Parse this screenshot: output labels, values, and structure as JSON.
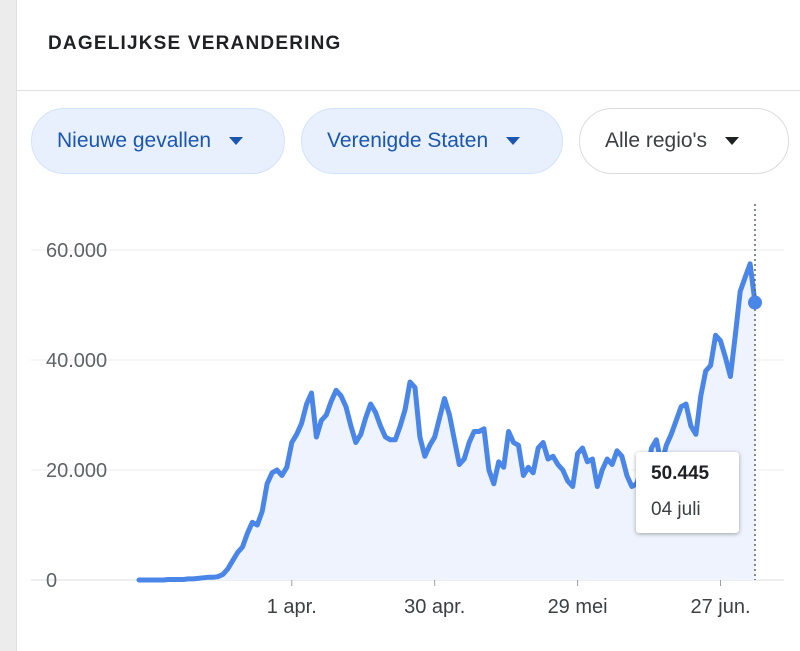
{
  "card": {
    "title": "DAGELIJKSE VERANDERING"
  },
  "filters": {
    "metric": "Nieuwe gevallen",
    "country": "Verenigde Staten",
    "region": "Alle regio's"
  },
  "tooltip": {
    "value": "50.445",
    "date": "04 juli"
  },
  "colors": {
    "line": "#4a86e8",
    "area": "#eef3fd",
    "chip_selected_bg": "#e8f0fe",
    "chip_selected_text": "#1a56b0"
  },
  "chart_data": {
    "type": "area",
    "xlabel": "",
    "ylabel": "",
    "ylim": [
      0,
      67000
    ],
    "y_ticks": [
      0,
      20000,
      40000,
      60000
    ],
    "y_tick_labels": [
      "0",
      "20.000",
      "40.000",
      "60.000"
    ],
    "x_ticks": [
      {
        "date": "2020-04-01",
        "label": "1 apr."
      },
      {
        "date": "2020-04-30",
        "label": "30 apr."
      },
      {
        "date": "2020-05-29",
        "label": "29 mei"
      },
      {
        "date": "2020-06-27",
        "label": "27 jun."
      }
    ],
    "grid": true,
    "highlighted": {
      "date": "2020-07-04",
      "value": 50445
    },
    "series": [
      {
        "dates": [
          "2020-03-01",
          "2020-03-02",
          "2020-03-03",
          "2020-03-04",
          "2020-03-05",
          "2020-03-06",
          "2020-03-07",
          "2020-03-08",
          "2020-03-09",
          "2020-03-10",
          "2020-03-11",
          "2020-03-12",
          "2020-03-13",
          "2020-03-14",
          "2020-03-15",
          "2020-03-16",
          "2020-03-17",
          "2020-03-18",
          "2020-03-19",
          "2020-03-20",
          "2020-03-21",
          "2020-03-22",
          "2020-03-23",
          "2020-03-24",
          "2020-03-25",
          "2020-03-26",
          "2020-03-27",
          "2020-03-28",
          "2020-03-29",
          "2020-03-30",
          "2020-03-31",
          "2020-04-01",
          "2020-04-02",
          "2020-04-03",
          "2020-04-04",
          "2020-04-05",
          "2020-04-06",
          "2020-04-07",
          "2020-04-08",
          "2020-04-09",
          "2020-04-10",
          "2020-04-11",
          "2020-04-12",
          "2020-04-13",
          "2020-04-14",
          "2020-04-15",
          "2020-04-16",
          "2020-04-17",
          "2020-04-18",
          "2020-04-19",
          "2020-04-20",
          "2020-04-21",
          "2020-04-22",
          "2020-04-23",
          "2020-04-24",
          "2020-04-25",
          "2020-04-26",
          "2020-04-27",
          "2020-04-28",
          "2020-04-29",
          "2020-04-30",
          "2020-05-01",
          "2020-05-02",
          "2020-05-03",
          "2020-05-04",
          "2020-05-05",
          "2020-05-06",
          "2020-05-07",
          "2020-05-08",
          "2020-05-09",
          "2020-05-10",
          "2020-05-11",
          "2020-05-12",
          "2020-05-13",
          "2020-05-14",
          "2020-05-15",
          "2020-05-16",
          "2020-05-17",
          "2020-05-18",
          "2020-05-19",
          "2020-05-20",
          "2020-05-21",
          "2020-05-22",
          "2020-05-23",
          "2020-05-24",
          "2020-05-25",
          "2020-05-26",
          "2020-05-27",
          "2020-05-28",
          "2020-05-29",
          "2020-05-30",
          "2020-05-31",
          "2020-06-01",
          "2020-06-02",
          "2020-06-03",
          "2020-06-04",
          "2020-06-05",
          "2020-06-06",
          "2020-06-07",
          "2020-06-08",
          "2020-06-09",
          "2020-06-10",
          "2020-06-11",
          "2020-06-12",
          "2020-06-13",
          "2020-06-14",
          "2020-06-15",
          "2020-06-16",
          "2020-06-17",
          "2020-06-18",
          "2020-06-19",
          "2020-06-20",
          "2020-06-21",
          "2020-06-22",
          "2020-06-23",
          "2020-06-24",
          "2020-06-25",
          "2020-06-26",
          "2020-06-27",
          "2020-06-28",
          "2020-06-29",
          "2020-06-30",
          "2020-07-01",
          "2020-07-02",
          "2020-07-03",
          "2020-07-04"
        ],
        "values": [
          0,
          0,
          0,
          0,
          0,
          0,
          100,
          100,
          100,
          100,
          200,
          200,
          300,
          400,
          500,
          500,
          600,
          1000,
          2000,
          3500,
          5000,
          6000,
          8500,
          10500,
          10000,
          12500,
          17500,
          19500,
          20000,
          19000,
          20500,
          25000,
          26500,
          28500,
          32000,
          34000,
          26000,
          29000,
          30000,
          32500,
          34500,
          33500,
          31500,
          28000,
          25000,
          26500,
          29500,
          32000,
          30500,
          28000,
          26000,
          25500,
          25500,
          28000,
          31000,
          36000,
          35000,
          26000,
          22500,
          24500,
          26000,
          29500,
          33000,
          30000,
          25500,
          21000,
          22000,
          25000,
          27000,
          27000,
          27500,
          20000,
          17500,
          21500,
          20500,
          27000,
          25000,
          24500,
          19000,
          20500,
          19500,
          24000,
          25000,
          22000,
          22500,
          21000,
          20000,
          18000,
          17000,
          23000,
          24000,
          21500,
          22000,
          17000,
          20000,
          22000,
          21000,
          23500,
          22500,
          19000,
          17000,
          17500,
          20500,
          18000,
          24000,
          25500,
          21000,
          24500,
          26500,
          29000,
          31500,
          32000,
          28000,
          26500,
          33500,
          38000,
          39000,
          44500,
          43500,
          40500,
          37000,
          44500,
          52500,
          55000,
          57500,
          50445
        ]
      }
    ]
  }
}
